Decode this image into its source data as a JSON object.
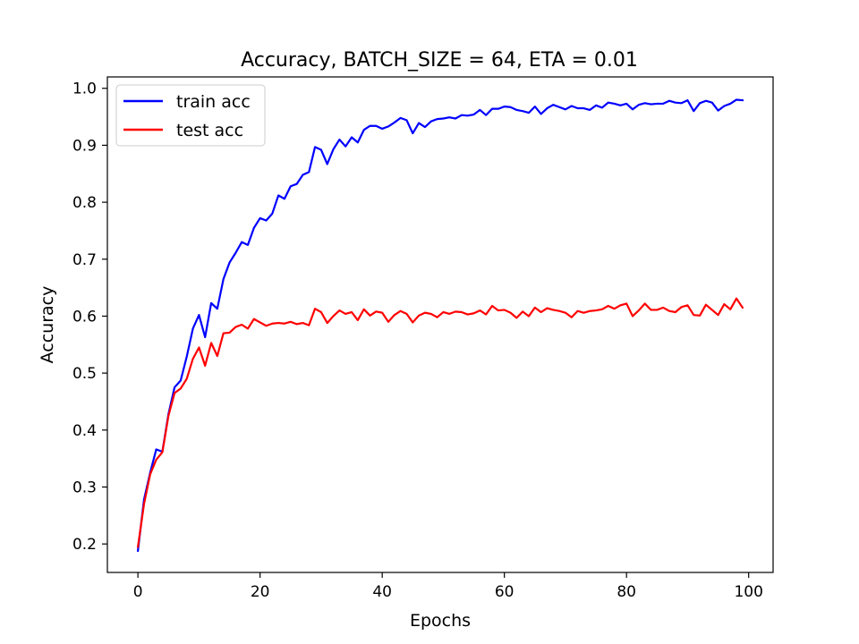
{
  "chart_data": {
    "type": "line",
    "title": "Accuracy, BATCH_SIZE = 64, ETA = 0.01",
    "xlabel": "Epochs",
    "ylabel": "Accuracy",
    "xlim": [
      -5,
      104
    ],
    "ylim": [
      0.15,
      1.02
    ],
    "xticks": [
      0,
      20,
      40,
      60,
      80,
      100
    ],
    "yticks": [
      0.2,
      0.3,
      0.4,
      0.5,
      0.6,
      0.7,
      0.8,
      0.9,
      1.0
    ],
    "xtick_labels": [
      "0",
      "20",
      "40",
      "60",
      "80",
      "100"
    ],
    "ytick_labels": [
      "0.2",
      "0.3",
      "0.4",
      "0.5",
      "0.6",
      "0.7",
      "0.8",
      "0.9",
      "1.0"
    ],
    "grid": false,
    "legend": "top-left",
    "series": [
      {
        "name": "train acc",
        "color": "#0000ff",
        "values": [
          0.188,
          0.278,
          0.325,
          0.366,
          0.362,
          0.428,
          0.475,
          0.487,
          0.529,
          0.578,
          0.602,
          0.563,
          0.623,
          0.613,
          0.665,
          0.694,
          0.711,
          0.73,
          0.725,
          0.755,
          0.772,
          0.768,
          0.78,
          0.812,
          0.806,
          0.828,
          0.832,
          0.848,
          0.853,
          0.897,
          0.892,
          0.867,
          0.893,
          0.91,
          0.898,
          0.914,
          0.905,
          0.927,
          0.934,
          0.934,
          0.929,
          0.933,
          0.94,
          0.948,
          0.944,
          0.921,
          0.939,
          0.932,
          0.942,
          0.946,
          0.947,
          0.949,
          0.947,
          0.953,
          0.952,
          0.954,
          0.962,
          0.953,
          0.964,
          0.964,
          0.968,
          0.967,
          0.962,
          0.96,
          0.957,
          0.968,
          0.955,
          0.965,
          0.971,
          0.967,
          0.963,
          0.969,
          0.965,
          0.965,
          0.962,
          0.97,
          0.966,
          0.975,
          0.973,
          0.97,
          0.973,
          0.963,
          0.971,
          0.974,
          0.972,
          0.973,
          0.973,
          0.978,
          0.975,
          0.974,
          0.979,
          0.96,
          0.974,
          0.978,
          0.975,
          0.961,
          0.969,
          0.973,
          0.98,
          0.979
        ]
      },
      {
        "name": "test acc",
        "color": "#ff0000",
        "values": [
          0.195,
          0.27,
          0.322,
          0.348,
          0.361,
          0.425,
          0.465,
          0.473,
          0.49,
          0.525,
          0.545,
          0.513,
          0.553,
          0.53,
          0.57,
          0.571,
          0.581,
          0.585,
          0.578,
          0.595,
          0.589,
          0.583,
          0.587,
          0.588,
          0.587,
          0.59,
          0.586,
          0.588,
          0.584,
          0.613,
          0.607,
          0.588,
          0.6,
          0.61,
          0.604,
          0.607,
          0.593,
          0.612,
          0.601,
          0.608,
          0.606,
          0.59,
          0.602,
          0.609,
          0.604,
          0.589,
          0.601,
          0.606,
          0.604,
          0.598,
          0.607,
          0.604,
          0.608,
          0.607,
          0.603,
          0.605,
          0.61,
          0.603,
          0.618,
          0.61,
          0.611,
          0.606,
          0.597,
          0.608,
          0.6,
          0.615,
          0.607,
          0.614,
          0.611,
          0.609,
          0.606,
          0.598,
          0.609,
          0.606,
          0.609,
          0.61,
          0.612,
          0.618,
          0.613,
          0.619,
          0.622,
          0.6,
          0.61,
          0.622,
          0.611,
          0.611,
          0.615,
          0.609,
          0.607,
          0.616,
          0.619,
          0.602,
          0.601,
          0.62,
          0.611,
          0.602,
          0.621,
          0.612,
          0.631,
          0.615
        ]
      }
    ]
  }
}
